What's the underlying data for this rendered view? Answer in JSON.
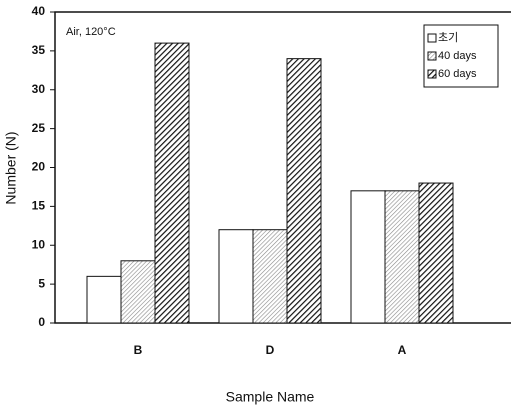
{
  "chart_data": {
    "type": "bar",
    "categories": [
      "B",
      "D",
      "A"
    ],
    "series": [
      {
        "name": "초기",
        "color": "#ffffff",
        "values": [
          6,
          12,
          17
        ]
      },
      {
        "name": "40 days",
        "color": "#888888",
        "values": [
          8,
          12,
          17
        ]
      },
      {
        "name": "60 days",
        "color": "#111111",
        "values": [
          36,
          34,
          18
        ]
      }
    ],
    "ylim": [
      0,
      40
    ],
    "yticks": [
      0,
      5,
      10,
      15,
      20,
      25,
      30,
      35,
      40
    ],
    "xlabel": "Sample Name",
    "ylabel": "Number (N)",
    "annotation": "Air, 120°C",
    "legend": "upper right"
  }
}
